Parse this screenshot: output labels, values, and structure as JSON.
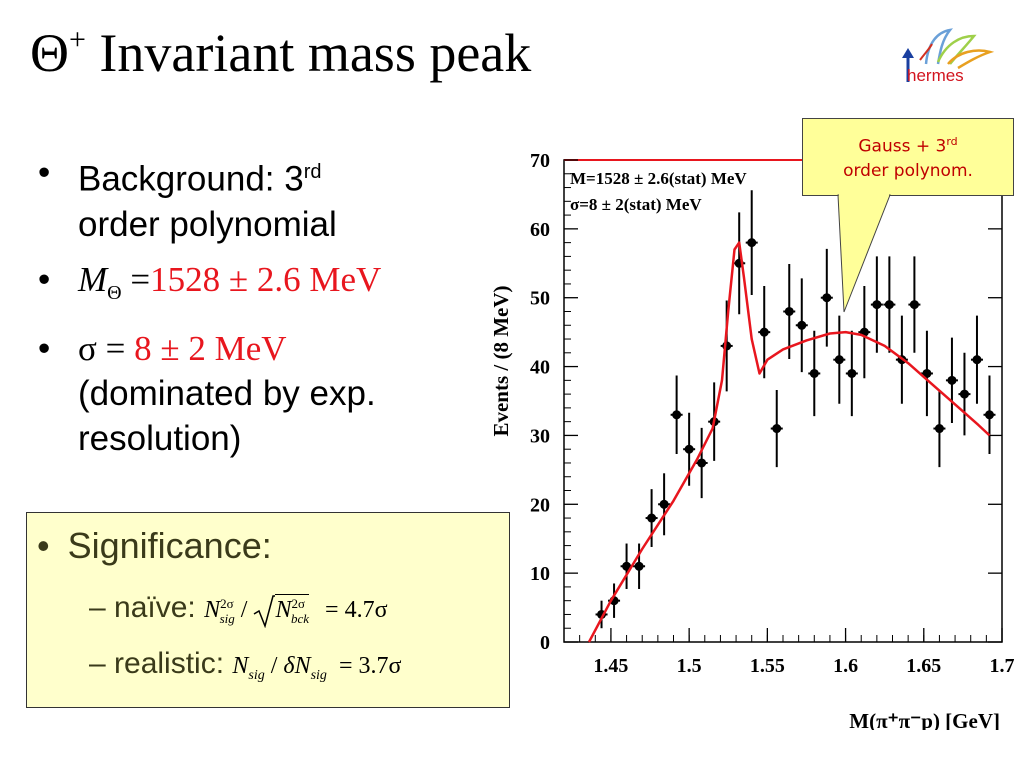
{
  "slide": {
    "title_symbol": "Θ",
    "title_sup": "+",
    "title_text": " Invariant mass peak",
    "logo_text": "hermes"
  },
  "bullets": {
    "background_label": "Background: 3",
    "background_sup": "rd",
    "background_rest": "order polynomial",
    "mass_symbol": "M",
    "mass_sub": "Θ",
    "mass_eq": " =",
    "mass_value": "1528 ± 2.6 MeV",
    "sigma_symbol": "σ = ",
    "sigma_value": "8 ± 2 MeV",
    "sigma_note": "(dominated by exp. resolution)"
  },
  "significance": {
    "heading": "Significance:",
    "naive_label": "– naïve:",
    "naive_formula": "N",
    "naive_result": "= 4.7σ",
    "realistic_label": "– realistic:",
    "realistic_formula": "N",
    "realistic_result": "= 3.7σ"
  },
  "callout": {
    "line1": "Gauss + 3",
    "line1_sup": "rd",
    "line2": "order polynom."
  },
  "colors": {
    "red": "#e8161e",
    "fit_curve": "#e8161e",
    "box_fill": "#ffffcc",
    "callout_fill": "#ffff99"
  },
  "chart_data": {
    "type": "scatter",
    "xlabel": "M(π⁺π⁻p) [GeV]",
    "ylabel": "Events / (8 MeV)",
    "xlim": [
      1.42,
      1.7
    ],
    "ylim": [
      0,
      70
    ],
    "xticks": [
      "1.45",
      "1.5",
      "1.55",
      "1.6",
      "1.65",
      "1.7"
    ],
    "yticks": [
      "0",
      "10",
      "20",
      "30",
      "40",
      "50",
      "60",
      "70"
    ],
    "annotations": [
      "M=1528 ± 2.6(stat) MeV",
      "σ=8 ± 2(stat) MeV"
    ],
    "series": [
      {
        "points": [
          [
            1.444,
            4
          ],
          [
            1.452,
            6
          ],
          [
            1.46,
            11
          ],
          [
            1.468,
            11
          ],
          [
            1.476,
            18
          ],
          [
            1.484,
            20
          ],
          [
            1.492,
            33
          ],
          [
            1.5,
            28
          ],
          [
            1.508,
            26
          ],
          [
            1.516,
            32
          ],
          [
            1.524,
            43
          ],
          [
            1.532,
            55
          ],
          [
            1.54,
            58
          ],
          [
            1.548,
            45
          ],
          [
            1.556,
            31
          ],
          [
            1.564,
            48
          ],
          [
            1.572,
            46
          ],
          [
            1.58,
            39
          ],
          [
            1.588,
            50
          ],
          [
            1.596,
            41
          ],
          [
            1.604,
            39
          ],
          [
            1.612,
            45
          ],
          [
            1.62,
            49
          ],
          [
            1.628,
            49
          ],
          [
            1.636,
            41
          ],
          [
            1.644,
            49
          ],
          [
            1.652,
            39
          ],
          [
            1.66,
            31
          ],
          [
            1.668,
            38
          ],
          [
            1.676,
            36
          ],
          [
            1.684,
            41
          ],
          [
            1.692,
            33
          ]
        ],
        "errors": [
          2,
          2.5,
          3.3,
          3.3,
          4.2,
          4.5,
          5.7,
          5.3,
          5.1,
          5.7,
          6.6,
          7.4,
          7.6,
          6.7,
          5.6,
          6.9,
          6.8,
          6.2,
          7.1,
          6.4,
          6.2,
          6.7,
          7,
          7,
          6.4,
          7,
          6.2,
          5.6,
          6.2,
          6,
          6.4,
          5.7
        ]
      },
      {
        "curve": [
          [
            1.436,
            0
          ],
          [
            1.45,
            6
          ],
          [
            1.47,
            13.5
          ],
          [
            1.49,
            20.5
          ],
          [
            1.505,
            26.5
          ],
          [
            1.515,
            31
          ],
          [
            1.521,
            38
          ],
          [
            1.525,
            48
          ],
          [
            1.529,
            57
          ],
          [
            1.532,
            58
          ],
          [
            1.535,
            53
          ],
          [
            1.54,
            44
          ],
          [
            1.545,
            39
          ],
          [
            1.55,
            41
          ],
          [
            1.56,
            42.5
          ],
          [
            1.575,
            43.8
          ],
          [
            1.59,
            44.8
          ],
          [
            1.6,
            45
          ],
          [
            1.61,
            44.6
          ],
          [
            1.625,
            43
          ],
          [
            1.64,
            40.5
          ],
          [
            1.655,
            37.5
          ],
          [
            1.67,
            34.5
          ],
          [
            1.685,
            31.5
          ],
          [
            1.692,
            30
          ]
        ]
      }
    ]
  }
}
